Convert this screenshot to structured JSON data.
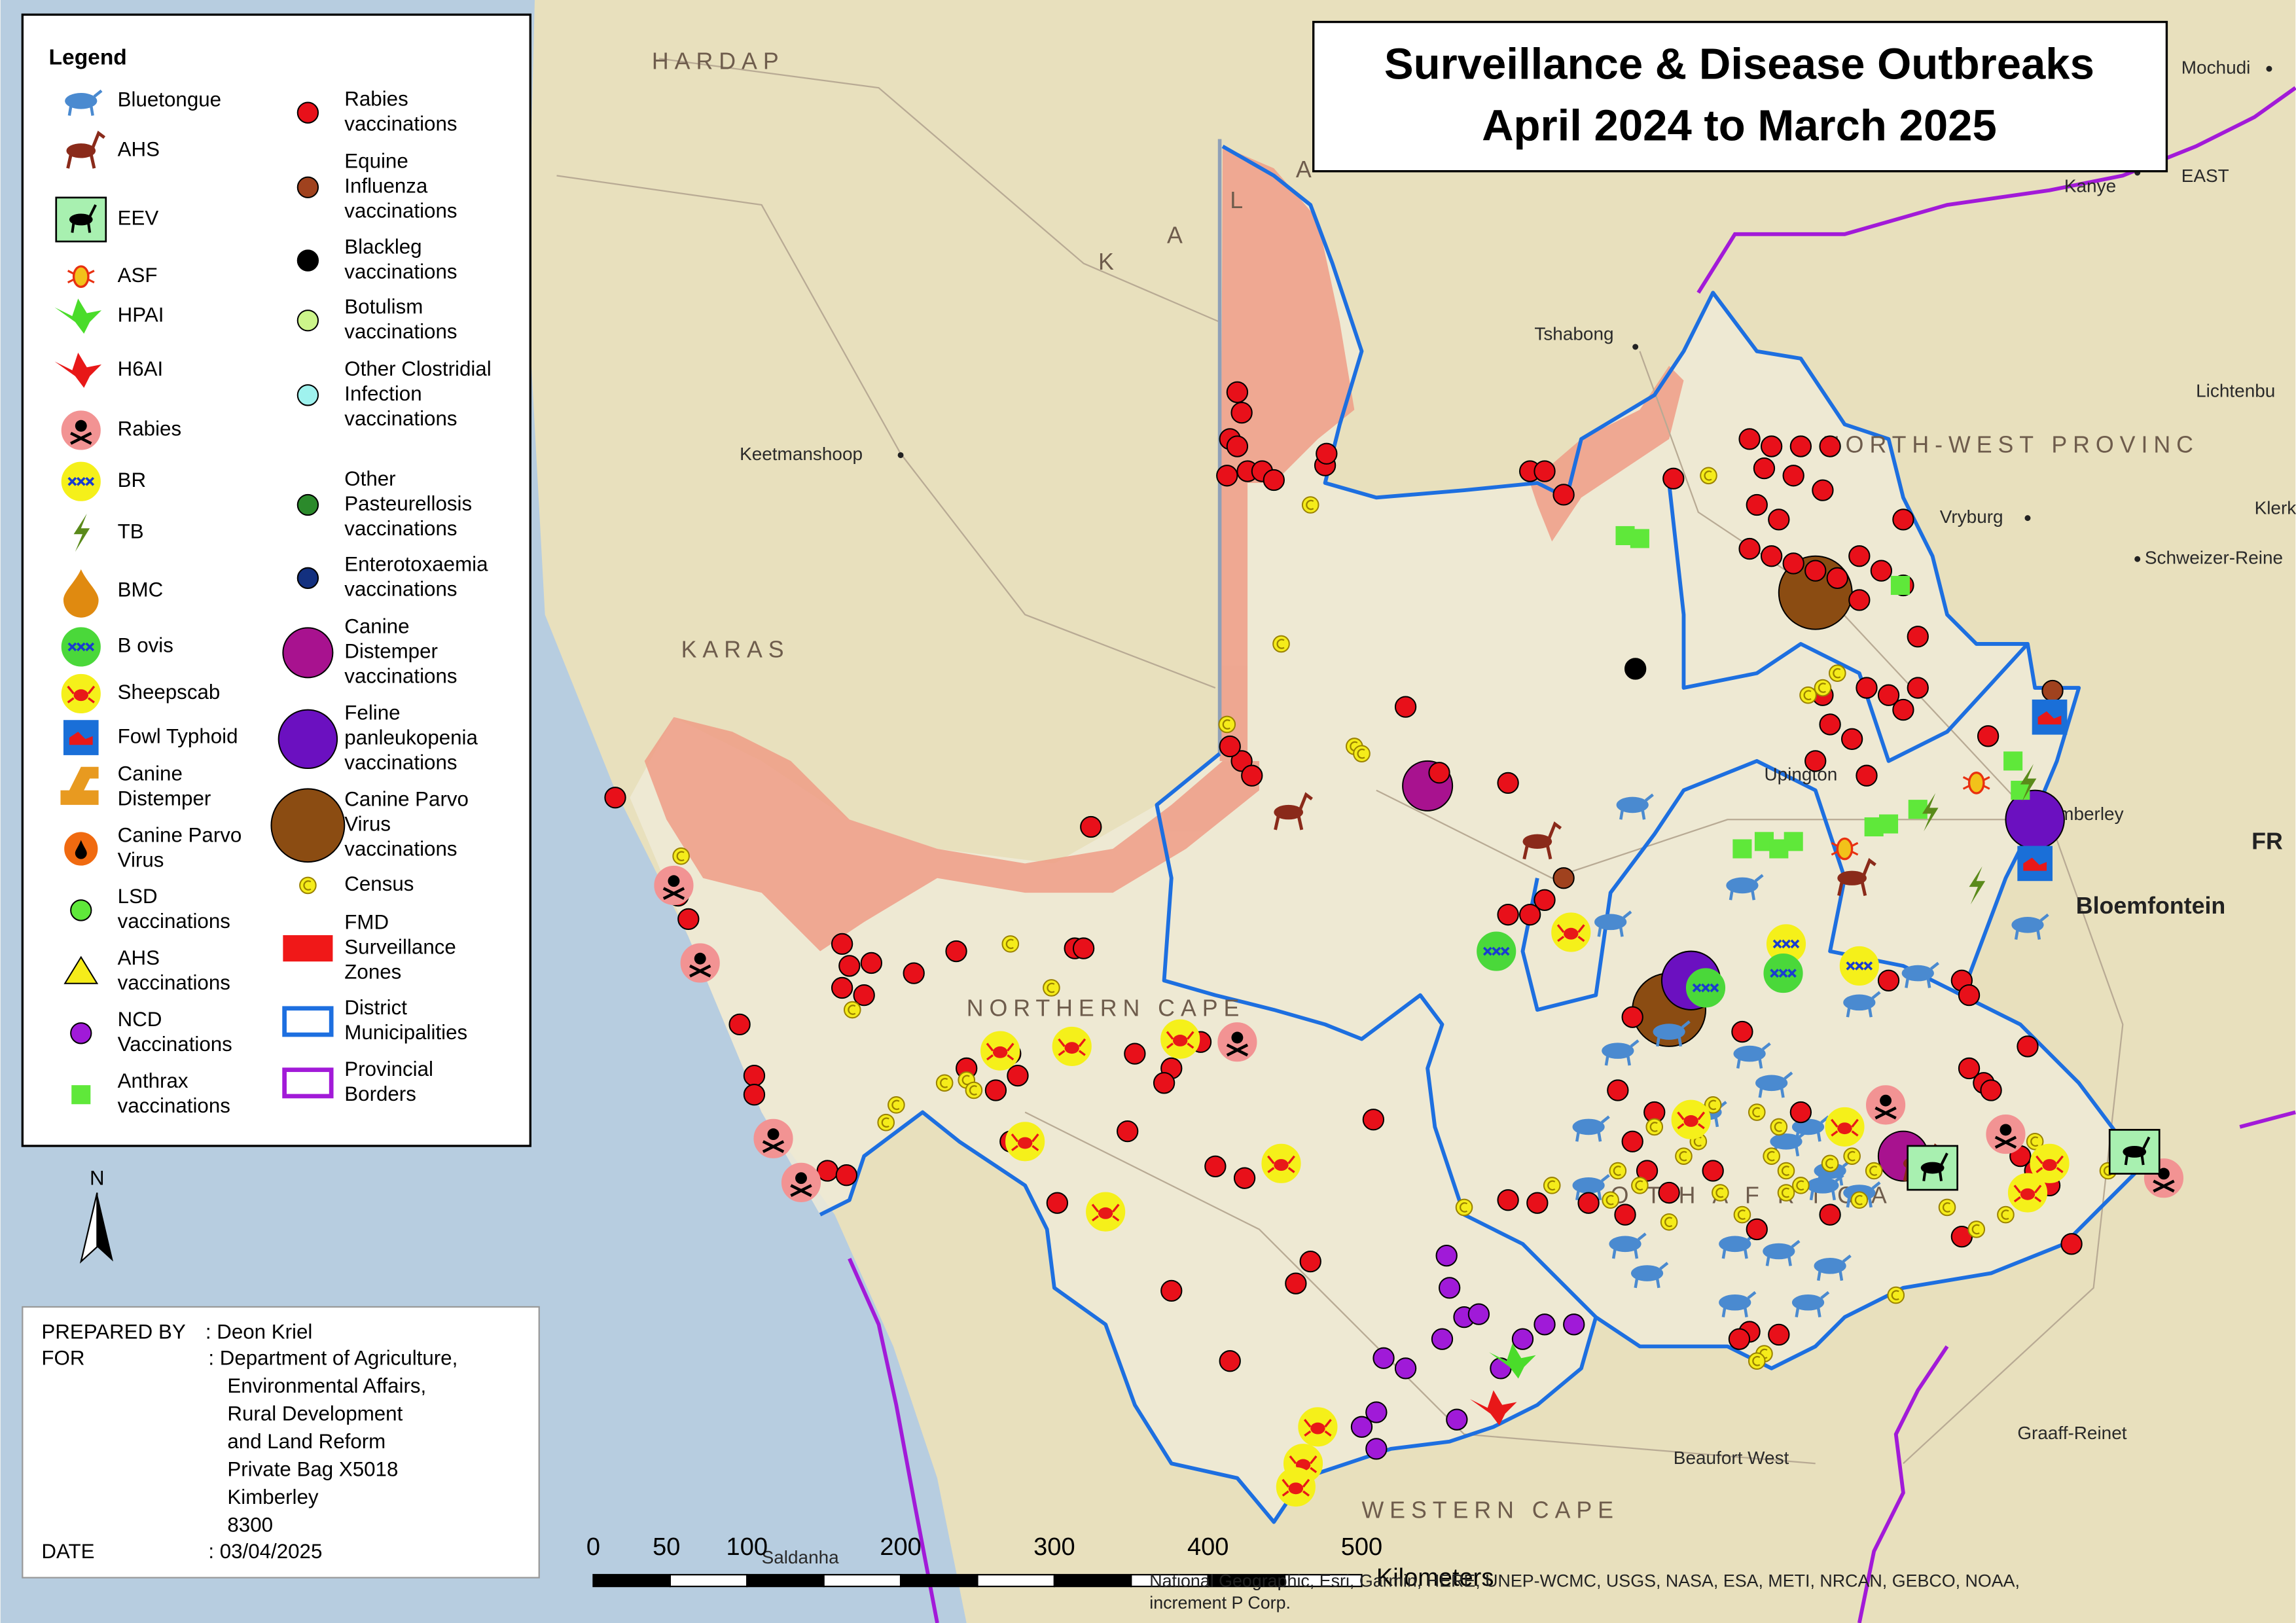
{
  "title": [
    "Surveillance & Disease Outbreaks",
    "April 2024 to March 2025"
  ],
  "legend": {
    "heading": "Legend",
    "items": [
      {
        "label": [
          "Bluetongue"
        ]
      },
      {
        "label": [
          "AHS"
        ]
      },
      {
        "label": [
          "EEV"
        ]
      },
      {
        "label": [
          "ASF"
        ]
      },
      {
        "label": [
          "HPAI"
        ]
      },
      {
        "label": [
          "H6AI"
        ]
      },
      {
        "label": [
          "Rabies"
        ]
      },
      {
        "label": [
          "BR"
        ]
      },
      {
        "label": [
          "TB"
        ]
      },
      {
        "label": [
          "BMC"
        ]
      },
      {
        "label": [
          "B ovis"
        ]
      },
      {
        "label": [
          "Sheepscab"
        ]
      },
      {
        "label": [
          "Fowl Typhoid"
        ]
      },
      {
        "label": [
          "Canine",
          "Distemper"
        ]
      },
      {
        "label": [
          "Canine Parvo",
          "Virus"
        ]
      },
      {
        "label": [
          "LSD",
          "vaccinations"
        ]
      },
      {
        "label": [
          "AHS",
          "vaccinations"
        ]
      },
      {
        "label": [
          "NCD",
          "Vaccinations"
        ]
      },
      {
        "label": [
          "Anthrax",
          "vaccinations"
        ]
      },
      {
        "label": [
          "Rabies",
          "vaccinations"
        ]
      },
      {
        "label": [
          "Equine",
          "Influenza",
          "vaccinations"
        ]
      },
      {
        "label": [
          "Blackleg",
          "vaccinations"
        ]
      },
      {
        "label": [
          "Botulism",
          "vaccinations"
        ]
      },
      {
        "label": [
          "Other Clostridial",
          "Infection",
          "vaccinations"
        ]
      },
      {
        "label": [
          "Other",
          "Pasteurellosis",
          "vaccinations"
        ]
      },
      {
        "label": [
          "Enterotoxaemia",
          "vaccinations"
        ]
      },
      {
        "label": [
          "Canine",
          "Distemper",
          "vaccinations"
        ]
      },
      {
        "label": [
          "Feline",
          "panleukopenia",
          "vaccinations"
        ]
      },
      {
        "label": [
          "Canine Parvo",
          "Virus",
          "vaccinations"
        ]
      },
      {
        "label": [
          "Census"
        ]
      },
      {
        "label": [
          "FMD",
          "Surveillance",
          "Zones"
        ]
      },
      {
        "label": [
          "District",
          "Municipalities"
        ]
      },
      {
        "label": [
          "Provincial",
          "Borders"
        ]
      }
    ]
  },
  "place_labels": [
    "HARDAP",
    "Keetmanshoop",
    "KARAS",
    "K",
    "A",
    "L",
    "A",
    "Tshabong",
    "Mochudi",
    "Kanye",
    "EAST",
    "Lichtenbu",
    "NORTH-WEST PROVINC",
    "Vryburg",
    "Klerk",
    "Schweizer-Reine",
    "Upington",
    "Kimberley",
    "Bloemfontein",
    "FR",
    "NORTHERN CAPE",
    "O T H   A F R I C A",
    "WESTERN CAPE",
    "Beaufort West",
    "Graaff-Reinet",
    "Saldanha"
  ],
  "north": "N",
  "credits": {
    "prepared_by": {
      "label": "PREPARED BY",
      "value": ": Deon Kriel"
    },
    "for": {
      "label": "FOR",
      "value": [
        ": Department of Agriculture,",
        "Environmental Affairs,",
        "Rural Development",
        "and  Land Reform",
        "Private Bag X5018",
        "Kimberley",
        "8300"
      ]
    },
    "date": {
      "label": "DATE",
      "value": ": 03/04/2025"
    }
  },
  "scale_bar": {
    "ticks": [
      0,
      50,
      100,
      200,
      300,
      400,
      500
    ],
    "unit": "Kilometers"
  },
  "attribution": [
    "National Geographic, Esri, Garmin, HERE, UNEP-WCMC, USGS, NASA, ESA, METI, NRCAN, GEBCO, NOAA,",
    "increment P Corp."
  ]
}
